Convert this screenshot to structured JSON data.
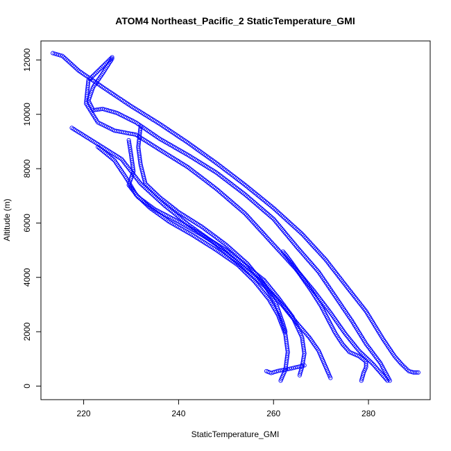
{
  "chart_data": {
    "type": "scatter",
    "title": "ATOM4 Northeast_Pacific_2 StaticTemperature_GMI",
    "xlabel": "StaticTemperature_GMI",
    "ylabel": "Altitude (m)",
    "xlim": [
      211,
      293
    ],
    "ylim": [
      -500,
      12700
    ],
    "xticks": [
      220,
      240,
      260,
      280
    ],
    "yticks": [
      0,
      2000,
      4000,
      6000,
      8000,
      10000,
      12000
    ],
    "grid": false,
    "marker": "open-circle",
    "color": "#0000ff",
    "series": [
      {
        "x": [
          213.5,
          215.5,
          219,
          224,
          230,
          236,
          242,
          248,
          254,
          260,
          266,
          271,
          275,
          279.5,
          283,
          285.5,
          287,
          288.5,
          289.5,
          290.5
        ],
        "y": [
          12250,
          12150,
          11600,
          11000,
          10300,
          9650,
          8950,
          8200,
          7400,
          6550,
          5600,
          4650,
          3750,
          2750,
          1750,
          1100,
          800,
          550,
          500,
          500
        ]
      },
      {
        "x": [
          226,
          224,
          222,
          221,
          222,
          224,
          227,
          231,
          236,
          242,
          248,
          254,
          260,
          265,
          269.5,
          273,
          276.5,
          279.5,
          282.5,
          284.5
        ],
        "y": [
          12050,
          11500,
          11000,
          10500,
          10150,
          10200,
          10050,
          9700,
          9100,
          8500,
          7850,
          7050,
          6150,
          5100,
          4200,
          3300,
          2400,
          1550,
          850,
          200
        ]
      },
      {
        "x": [
          226,
          221,
          220.5,
          223,
          226.5,
          231,
          236,
          242,
          248,
          254,
          259.5,
          264.5,
          268.5,
          272,
          275,
          278,
          281,
          283,
          284
        ],
        "y": [
          12100,
          11250,
          10400,
          9700,
          9400,
          9250,
          8700,
          8050,
          7250,
          6350,
          5300,
          4350,
          3500,
          2700,
          1950,
          1300,
          800,
          400,
          200
        ]
      },
      {
        "x": [
          217.5,
          223,
          228,
          232,
          237,
          242,
          248,
          253,
          258,
          262,
          265,
          267.5,
          269.5,
          270.5,
          271.5,
          272
        ],
        "y": [
          9500,
          8900,
          8350,
          7450,
          6650,
          5950,
          5200,
          4450,
          3700,
          2950,
          2300,
          1800,
          1300,
          900,
          500,
          300
        ]
      },
      {
        "x": [
          223,
          226.5,
          229,
          231,
          234,
          238,
          243,
          248,
          252.5,
          256,
          259,
          261,
          262.5,
          263,
          262.5,
          261.5
        ],
        "y": [
          8800,
          8300,
          7650,
          7050,
          6550,
          6050,
          5550,
          5000,
          4450,
          3850,
          3200,
          2600,
          1900,
          1250,
          600,
          200
        ]
      },
      {
        "x": [
          229.5,
          230,
          230.5,
          229.5,
          231.5,
          235,
          240,
          245,
          250,
          254,
          258,
          261,
          264,
          266,
          266.5,
          266,
          265.5
        ],
        "y": [
          9050,
          8500,
          7900,
          7400,
          6950,
          6500,
          6050,
          5550,
          5000,
          4450,
          3900,
          3250,
          2550,
          1800,
          1200,
          700,
          400
        ]
      },
      {
        "x": [
          232,
          231.5,
          232,
          233,
          236,
          240,
          245,
          250,
          254.5,
          258,
          260.5,
          262,
          262.5
        ],
        "y": [
          9550,
          8800,
          8150,
          7450,
          6950,
          6400,
          5850,
          5200,
          4500,
          3750,
          3050,
          2300,
          2000
        ]
      },
      {
        "x": [
          262,
          262.5,
          264,
          266,
          268,
          270,
          271.5,
          273,
          274.5,
          276,
          278,
          279.5,
          279.5,
          279,
          278.5
        ],
        "y": [
          4950,
          4850,
          4500,
          4000,
          3500,
          2950,
          2450,
          1950,
          1550,
          1250,
          1100,
          900,
          700,
          500,
          200
        ]
      },
      {
        "x": [
          258.5,
          259.5,
          261,
          263,
          265,
          266.5
        ],
        "y": [
          550,
          480,
          560,
          620,
          700,
          760
        ]
      }
    ]
  }
}
